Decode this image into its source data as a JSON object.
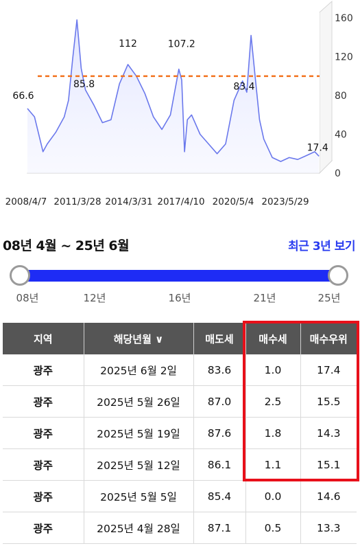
{
  "chart_data": {
    "type": "area",
    "x_tick_labels": [
      "2008/4/7",
      "2011/3/28",
      "2014/3/31",
      "2017/4/10",
      "2020/5/4",
      "2023/5/29"
    ],
    "y_ticks": [
      0,
      40,
      80,
      120,
      160
    ],
    "ylim": [
      0,
      170
    ],
    "series": [
      {
        "x": [
          "2008/4",
          "2008/9",
          "2009/3",
          "2009/6",
          "2009/12",
          "2010/6",
          "2010/9",
          "2010/12",
          "2011/3",
          "2011/6",
          "2011/9",
          "2012/3",
          "2012/9",
          "2013/3",
          "2013/9",
          "2014/3",
          "2014/9",
          "2015/3",
          "2015/9",
          "2016/3",
          "2016/9",
          "2017/3",
          "2017/5",
          "2017/7",
          "2017/9",
          "2017/12",
          "2018/6",
          "2018/12",
          "2019/6",
          "2019/12",
          "2020/6",
          "2020/12",
          "2021/3",
          "2021/6",
          "2021/9",
          "2021/12",
          "2022/3",
          "2022/9",
          "2023/3",
          "2023/9",
          "2024/3",
          "2024/9",
          "2025/3",
          "2025/6"
        ],
        "values": [
          66.6,
          58,
          22,
          30,
          42,
          58,
          75,
          118,
          158,
          108,
          85.8,
          70,
          52,
          55,
          92,
          112,
          100,
          82,
          58,
          45,
          60,
          107.2,
          96,
          22,
          55,
          60,
          40,
          30,
          20,
          30,
          75,
          95,
          83.4,
          142,
          98,
          55,
          35,
          16,
          12,
          16,
          14,
          18,
          22,
          17.4
        ]
      }
    ],
    "data_labels": [
      "66.6",
      "85.8",
      "112",
      "107.2",
      "83.4",
      "17.4"
    ],
    "reference_line": {
      "value": 100,
      "color": "#f2711c"
    },
    "line_color": "#6a78ec",
    "grid": false
  },
  "range_title": "08년 4월 ~ 25년 6월",
  "recent_link": "최근 3년 보기",
  "slider": {
    "ticks": [
      "08년",
      "12년",
      "16년",
      "21년",
      "25년"
    ],
    "color": "#1e2cf5"
  },
  "table": {
    "headers": [
      "지역",
      "해당년월 ∨",
      "매도세",
      "매수세",
      "매수우위"
    ],
    "rows": [
      [
        "광주",
        "2025년 6월 2일",
        "83.6",
        "1.0",
        "17.4"
      ],
      [
        "광주",
        "2025년 5월 26일",
        "87.0",
        "2.5",
        "15.5"
      ],
      [
        "광주",
        "2025년 5월 19일",
        "87.6",
        "1.8",
        "14.3"
      ],
      [
        "광주",
        "2025년 5월 12일",
        "86.1",
        "1.1",
        "15.1"
      ],
      [
        "광주",
        "2025년 5월 5일",
        "85.4",
        "0.0",
        "14.6"
      ],
      [
        "광주",
        "2025년 4월 28일",
        "87.1",
        "0.5",
        "13.3"
      ]
    ],
    "highlight_color": "#e8101a"
  }
}
